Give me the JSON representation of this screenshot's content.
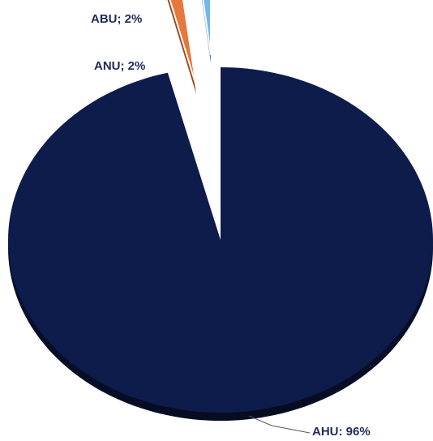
{
  "chart_data": {
    "type": "pie",
    "style": "3d-exploded",
    "slices": [
      {
        "label": "AHU",
        "value": 96,
        "label_text": "AHU: 96%",
        "color": "#0e1c4b"
      },
      {
        "label": "ANU",
        "value": 2,
        "label_text": "ANU; 2%",
        "color": "#e8773b"
      },
      {
        "label": "ABU",
        "value": 2,
        "label_text": "ABU; 2%",
        "color": "#74b6ee"
      }
    ],
    "label_color": "#1f2a5a"
  }
}
